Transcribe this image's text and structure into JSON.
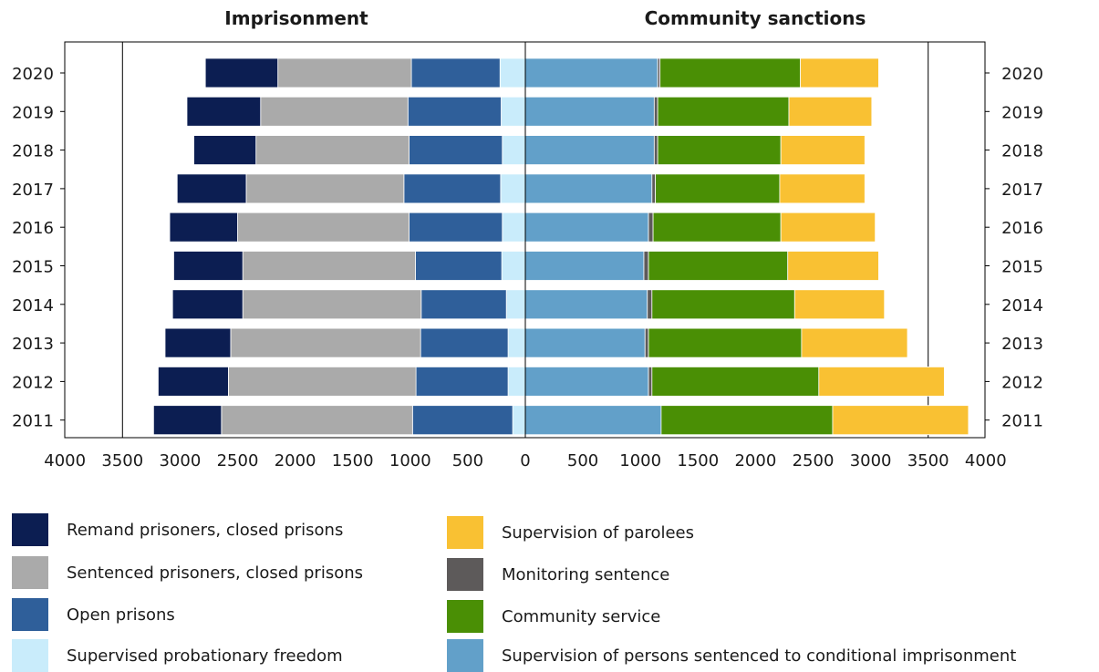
{
  "chart_data": {
    "type": "bar",
    "orientation": "horizontal",
    "layout": "butterfly",
    "years": [
      "2020",
      "2019",
      "2018",
      "2017",
      "2016",
      "2015",
      "2014",
      "2013",
      "2012",
      "2011"
    ],
    "left_panel": {
      "title": "Imprisonment",
      "series": [
        {
          "name": "Supervised probationary freedom",
          "color": "#c9ecfb",
          "values": [
            220,
            210,
            200,
            215,
            200,
            205,
            165,
            150,
            150,
            110
          ]
        },
        {
          "name": "Open prisons",
          "color": "#2f5f9a",
          "values": [
            770,
            810,
            810,
            840,
            810,
            750,
            740,
            760,
            800,
            870
          ]
        },
        {
          "name": "Sentenced prisoners, closed prisons",
          "color": "#aaaaaa",
          "values": [
            1160,
            1280,
            1330,
            1370,
            1490,
            1500,
            1550,
            1650,
            1630,
            1660
          ]
        },
        {
          "name": "Remand prisoners, closed prisons",
          "color": "#0c1e52",
          "values": [
            630,
            640,
            540,
            600,
            590,
            600,
            610,
            570,
            610,
            590
          ]
        }
      ]
    },
    "right_panel": {
      "title": "Community sanctions",
      "series": [
        {
          "name": "Supervision of persons sentenced to conditional imprisonment",
          "color": "#62a0c9",
          "values": [
            1150,
            1120,
            1120,
            1100,
            1070,
            1030,
            1060,
            1040,
            1070,
            1180
          ]
        },
        {
          "name": "Monitoring sentence",
          "color": "#5d5a5a",
          "values": [
            20,
            30,
            30,
            30,
            40,
            40,
            40,
            30,
            30,
            0
          ]
        },
        {
          "name": "Community service",
          "color": "#4a8f05",
          "values": [
            1220,
            1140,
            1070,
            1080,
            1110,
            1210,
            1240,
            1330,
            1450,
            1490
          ]
        },
        {
          "name": "Supervision of parolees",
          "color": "#f9c133",
          "values": [
            680,
            720,
            730,
            740,
            820,
            790,
            780,
            920,
            1090,
            1180
          ]
        }
      ]
    },
    "x_ticks": [
      4000,
      3500,
      3000,
      2500,
      2000,
      1500,
      1000,
      500,
      0,
      500,
      1000,
      1500,
      2000,
      2500,
      3000,
      3500,
      4000
    ],
    "xlim": [
      -4000,
      4000
    ],
    "gridlines": [
      -3500,
      0,
      3500
    ],
    "legend": {
      "placement": "bottom",
      "left_column": [
        {
          "label": "Remand prisoners, closed prisons",
          "color": "#0c1e52"
        },
        {
          "label": "Sentenced prisoners, closed prisons",
          "color": "#aaaaaa"
        },
        {
          "label": "Open prisons",
          "color": "#2f5f9a"
        },
        {
          "label": "Supervised probationary freedom",
          "color": "#c9ecfb"
        }
      ],
      "right_column": [
        {
          "label": "Supervision of parolees",
          "color": "#f9c133"
        },
        {
          "label": "Monitoring sentence",
          "color": "#5d5a5a"
        },
        {
          "label": "Community service",
          "color": "#4a8f05"
        },
        {
          "label": "Supervision of persons sentenced to conditional imprisonment",
          "color": "#62a0c9"
        }
      ]
    }
  }
}
